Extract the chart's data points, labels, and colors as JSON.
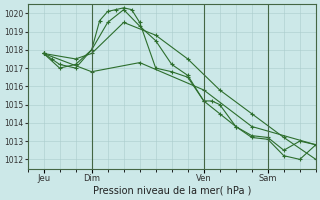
{
  "xlabel": "Pression niveau de la mer( hPa )",
  "bg_color": "#cce8e8",
  "grid_color": "#aacccc",
  "line_color": "#2d6e2d",
  "ylim": [
    1011.5,
    1020.5
  ],
  "yticks": [
    1012,
    1013,
    1014,
    1015,
    1016,
    1017,
    1018,
    1019,
    1020
  ],
  "xlim": [
    0,
    108
  ],
  "day_positions": [
    6,
    24,
    66,
    90
  ],
  "day_labels": [
    "Jeu",
    "Dim",
    "Ven",
    "Sam"
  ],
  "vline_positions": [
    24,
    66,
    90
  ],
  "line1_x": [
    6,
    9,
    12,
    18,
    24,
    27,
    30,
    33,
    36,
    39,
    42,
    48,
    54,
    60,
    66,
    69,
    72,
    78,
    84,
    90,
    96,
    102,
    108
  ],
  "line1_y": [
    1017.8,
    1017.5,
    1017.2,
    1017.0,
    1018.0,
    1019.6,
    1020.1,
    1020.2,
    1020.3,
    1020.2,
    1019.5,
    1017.0,
    1016.8,
    1016.5,
    1015.2,
    1015.2,
    1015.0,
    1013.8,
    1013.3,
    1013.2,
    1012.5,
    1013.0,
    1012.8
  ],
  "line2_x": [
    6,
    12,
    18,
    24,
    30,
    36,
    42,
    48,
    54,
    60,
    66,
    72,
    78,
    84,
    90,
    96,
    102,
    108
  ],
  "line2_y": [
    1017.8,
    1017.0,
    1017.2,
    1018.0,
    1019.5,
    1020.2,
    1019.3,
    1018.5,
    1017.2,
    1016.6,
    1015.2,
    1014.5,
    1013.8,
    1013.2,
    1013.1,
    1012.2,
    1012.0,
    1012.8
  ],
  "line3_x": [
    6,
    18,
    24,
    36,
    48,
    60,
    72,
    84,
    96,
    108
  ],
  "line3_y": [
    1017.8,
    1017.5,
    1017.8,
    1019.5,
    1018.8,
    1017.5,
    1015.8,
    1014.5,
    1013.2,
    1012.0
  ],
  "line4_x": [
    6,
    24,
    42,
    66,
    84,
    108
  ],
  "line4_y": [
    1017.8,
    1016.8,
    1017.3,
    1015.8,
    1013.8,
    1012.8
  ]
}
